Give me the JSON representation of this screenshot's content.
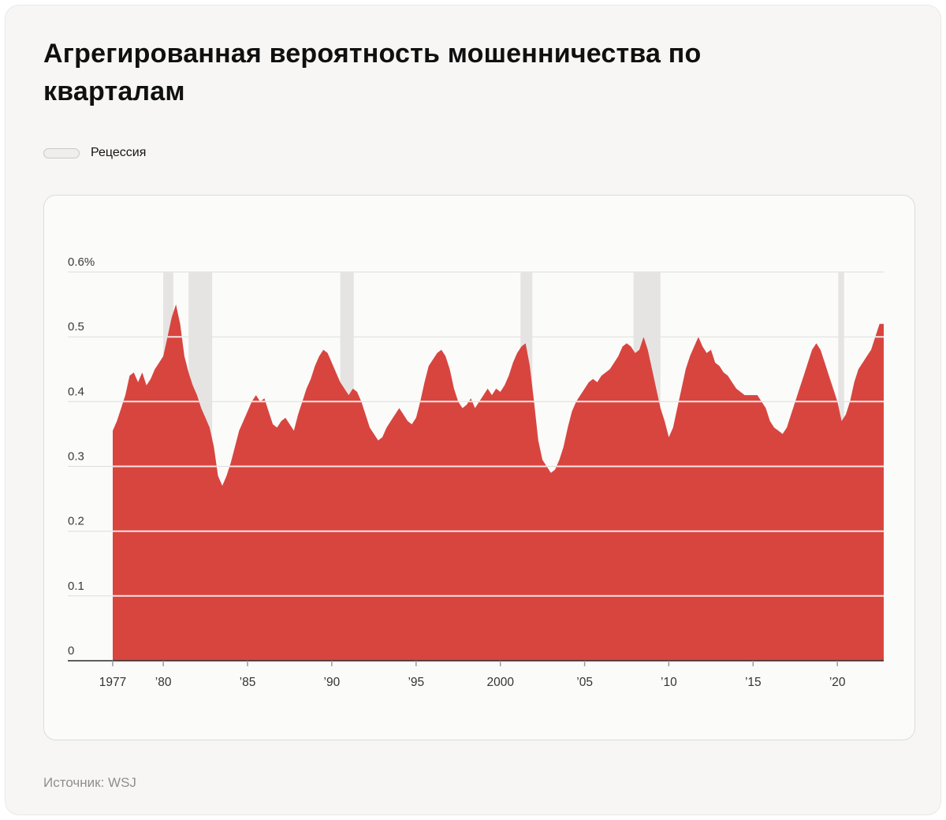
{
  "page": {
    "title": "Агрегированная вероятность мошенничества по кварталам",
    "source": "Источник: WSJ",
    "legend": {
      "recession_label": "Рецессия"
    }
  },
  "chart_data": {
    "type": "area",
    "title": "Агрегированная вероятность мошенничества по кварталам",
    "unit": "%",
    "frequency": "quarterly",
    "x_start_year": 1977,
    "x_end_year": 2022.75,
    "ylim": [
      0,
      0.6
    ],
    "ytick_values": [
      0,
      0.1,
      0.2,
      0.3,
      0.4,
      0.5,
      0.6
    ],
    "yticks": [
      "0",
      "0.1",
      "0.2",
      "0.3",
      "0.4",
      "0.5",
      "0.6%"
    ],
    "xticks": [
      {
        "year": 1977,
        "label": "1977"
      },
      {
        "year": 1980,
        "label": "’80"
      },
      {
        "year": 1985,
        "label": "’85"
      },
      {
        "year": 1990,
        "label": "’90"
      },
      {
        "year": 1995,
        "label": "’95"
      },
      {
        "year": 2000,
        "label": "2000"
      },
      {
        "year": 2005,
        "label": "’05"
      },
      {
        "year": 2010,
        "label": "’10"
      },
      {
        "year": 2015,
        "label": "’15"
      },
      {
        "year": 2020,
        "label": "’20"
      }
    ],
    "series_color": "#d8453f",
    "recession_color": "#e5e4e3",
    "legend_label": "Рецессия",
    "recessions": [
      [
        1980.0,
        1980.6
      ],
      [
        1981.5,
        1982.9
      ],
      [
        1990.5,
        1991.3
      ],
      [
        2001.2,
        2001.9
      ],
      [
        2007.9,
        2009.5
      ],
      [
        2020.05,
        2020.4
      ]
    ],
    "values": [
      0.355,
      0.37,
      0.39,
      0.41,
      0.44,
      0.445,
      0.43,
      0.445,
      0.425,
      0.435,
      0.45,
      0.46,
      0.47,
      0.5,
      0.53,
      0.55,
      0.52,
      0.47,
      0.445,
      0.425,
      0.41,
      0.39,
      0.375,
      0.36,
      0.33,
      0.285,
      0.27,
      0.285,
      0.305,
      0.33,
      0.355,
      0.37,
      0.385,
      0.4,
      0.41,
      0.4,
      0.405,
      0.385,
      0.365,
      0.36,
      0.37,
      0.375,
      0.365,
      0.355,
      0.38,
      0.4,
      0.42,
      0.435,
      0.455,
      0.47,
      0.48,
      0.475,
      0.46,
      0.445,
      0.43,
      0.42,
      0.41,
      0.42,
      0.415,
      0.4,
      0.38,
      0.36,
      0.35,
      0.34,
      0.345,
      0.36,
      0.37,
      0.38,
      0.39,
      0.38,
      0.37,
      0.365,
      0.375,
      0.4,
      0.43,
      0.455,
      0.465,
      0.475,
      0.48,
      0.47,
      0.45,
      0.42,
      0.4,
      0.39,
      0.395,
      0.405,
      0.39,
      0.4,
      0.41,
      0.42,
      0.41,
      0.42,
      0.415,
      0.425,
      0.44,
      0.46,
      0.475,
      0.485,
      0.49,
      0.455,
      0.4,
      0.34,
      0.31,
      0.3,
      0.29,
      0.295,
      0.31,
      0.33,
      0.36,
      0.385,
      0.4,
      0.41,
      0.42,
      0.43,
      0.435,
      0.43,
      0.44,
      0.445,
      0.45,
      0.46,
      0.47,
      0.485,
      0.49,
      0.485,
      0.475,
      0.48,
      0.5,
      0.48,
      0.45,
      0.42,
      0.39,
      0.37,
      0.345,
      0.36,
      0.39,
      0.42,
      0.45,
      0.47,
      0.485,
      0.5,
      0.485,
      0.475,
      0.48,
      0.46,
      0.455,
      0.445,
      0.44,
      0.43,
      0.42,
      0.415,
      0.41,
      0.41,
      0.41,
      0.41,
      0.4,
      0.39,
      0.37,
      0.36,
      0.355,
      0.35,
      0.36,
      0.38,
      0.4,
      0.42,
      0.44,
      0.46,
      0.48,
      0.49,
      0.48,
      0.46,
      0.44,
      0.42,
      0.4,
      0.37,
      0.38,
      0.4,
      0.43,
      0.45,
      0.46,
      0.47,
      0.48,
      0.5,
      0.52,
      0.52
    ]
  }
}
